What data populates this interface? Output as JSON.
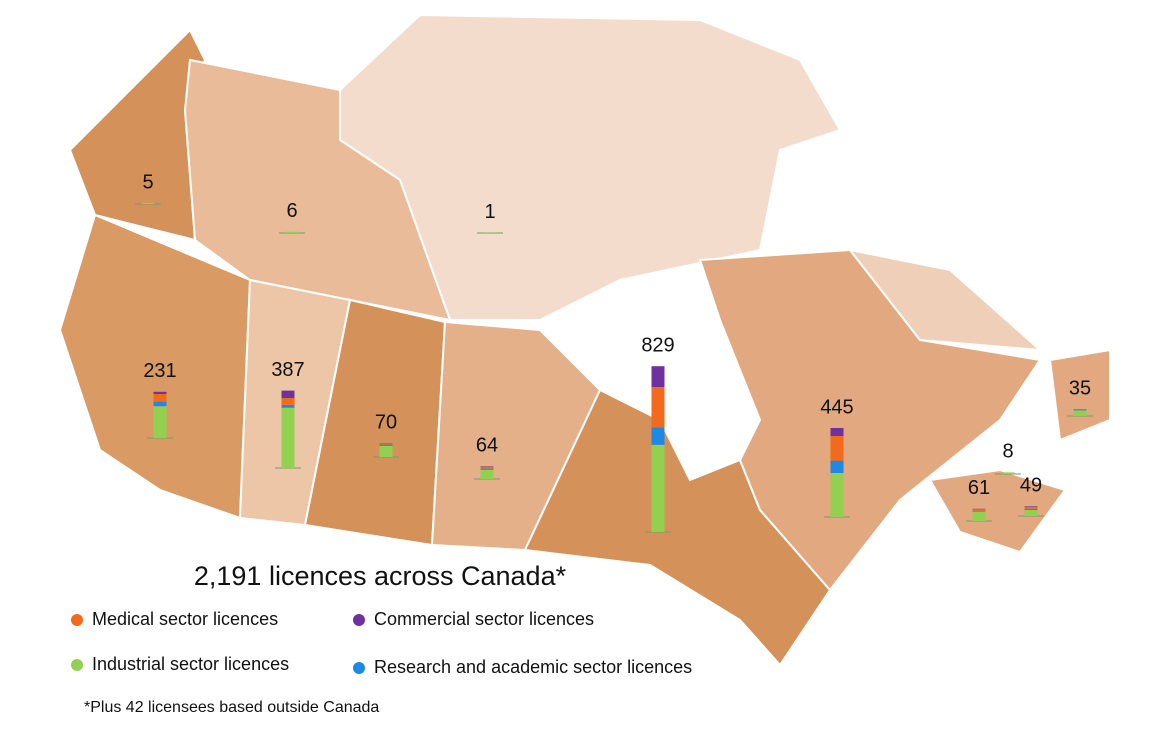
{
  "chart_data": {
    "type": "map-stacked-bar",
    "title": "2,191 licences across Canada*",
    "footnote": "*Plus 42 licensees based outside Canada",
    "totals": [
      5,
      6,
      1,
      231,
      387,
      70,
      64,
      829,
      445,
      35,
      8,
      61,
      49
    ],
    "series": [
      {
        "name": "Industrial sector licences",
        "color": "#92d050",
        "values": [
          5,
          6,
          1,
          159,
          301,
          56,
          46,
          436,
          220,
          28,
          8,
          47,
          30
        ]
      },
      {
        "name": "Research and academic sector licences",
        "color": "#1e88e5",
        "values": [
          0,
          0,
          0,
          23,
          15,
          6,
          6,
          87,
          62,
          2,
          0,
          4,
          6
        ]
      },
      {
        "name": "Medical sector licences",
        "color": "#f26b1d",
        "values": [
          0,
          0,
          0,
          38,
          34,
          7,
          10,
          202,
          123,
          4,
          0,
          8,
          10
        ]
      },
      {
        "name": "Commercial sector licences",
        "color": "#7030a0",
        "values": [
          0,
          0,
          0,
          11,
          37,
          1,
          2,
          104,
          40,
          1,
          0,
          2,
          3
        ]
      }
    ]
  }
}
